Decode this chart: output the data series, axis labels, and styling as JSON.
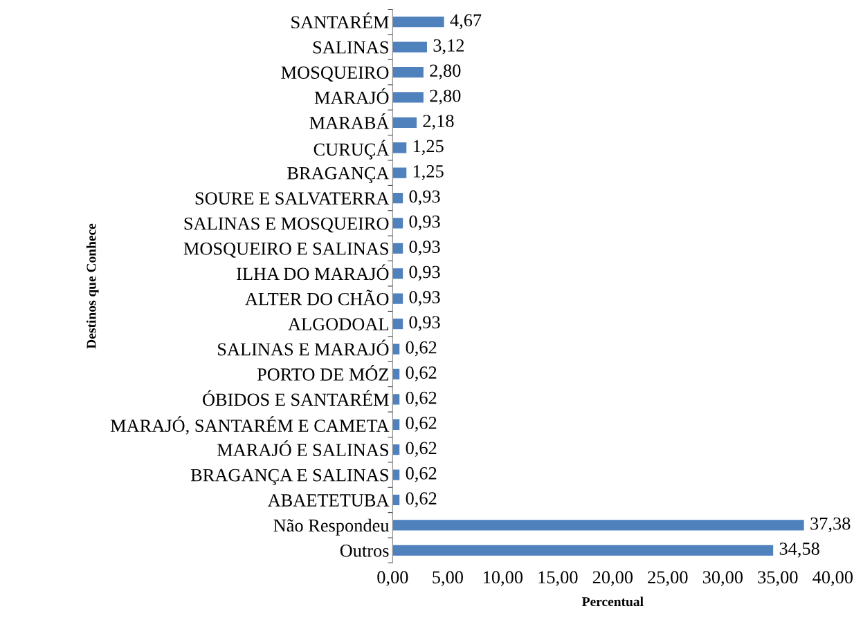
{
  "chart_data": {
    "type": "bar",
    "orientation": "horizontal",
    "xlabel": "Percentual",
    "ylabel": "Destinos que Conhece",
    "categories": [
      "SANTARÉM",
      "SALINAS",
      "MOSQUEIRO",
      "MARAJÓ",
      "MARABÁ",
      "CURUÇÁ",
      "BRAGANÇA",
      "SOURE E SALVATERRA",
      "SALINAS E MOSQUEIRO",
      "MOSQUEIRO E SALINAS",
      "ILHA DO MARAJÓ",
      "ALTER DO CHÃO",
      "ALGODOAL",
      "SALINAS E MARAJÓ",
      "PORTO DE MÓZ",
      "ÓBIDOS E SANTARÉM",
      "MARAJÓ, SANTARÉM E CAMETA",
      "MARAJÓ E SALINAS",
      "BRAGANÇA E SALINAS",
      "ABAETETUBA",
      "Não Respondeu",
      "Outros"
    ],
    "values": [
      4.67,
      3.12,
      2.8,
      2.8,
      2.18,
      1.25,
      1.25,
      0.93,
      0.93,
      0.93,
      0.93,
      0.93,
      0.93,
      0.62,
      0.62,
      0.62,
      0.62,
      0.62,
      0.62,
      0.62,
      37.38,
      34.58
    ],
    "value_labels": [
      "4,67",
      "3,12",
      "2,80",
      "2,80",
      "2,18",
      "1,25",
      "1,25",
      "0,93",
      "0,93",
      "0,93",
      "0,93",
      "0,93",
      "0,93",
      "0,62",
      "0,62",
      "0,62",
      "0,62",
      "0,62",
      "0,62",
      "0,62",
      "37,38",
      "34,58"
    ],
    "color": "#4f81bd",
    "xlim": [
      0,
      40
    ],
    "xticks": [
      {
        "value": 0,
        "label": "0,00"
      },
      {
        "value": 5,
        "label": "5,00"
      },
      {
        "value": 10,
        "label": "10,00"
      },
      {
        "value": 15,
        "label": "15,00"
      },
      {
        "value": 20,
        "label": "20,00"
      },
      {
        "value": 25,
        "label": "25,00"
      },
      {
        "value": 30,
        "label": "30,00"
      },
      {
        "value": 35,
        "label": "35,00"
      },
      {
        "value": 40,
        "label": "40,00"
      }
    ],
    "grid": false,
    "legend": false
  }
}
